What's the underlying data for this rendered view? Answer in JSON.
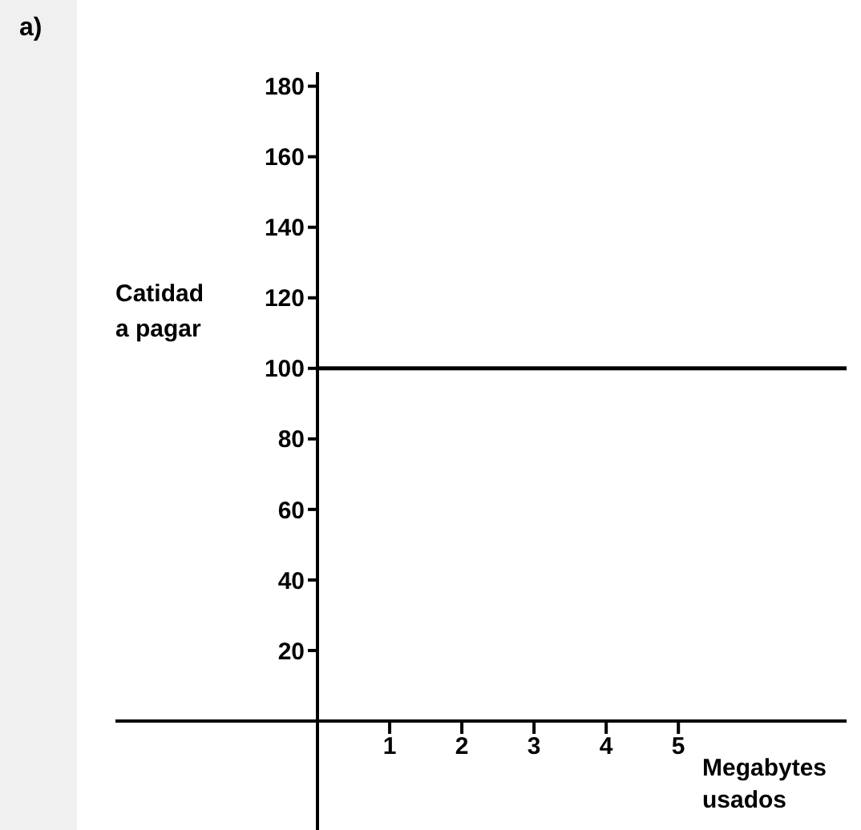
{
  "chart_data": {
    "type": "line",
    "annotations": [
      "a)"
    ],
    "xlabel": "Megabytes usados",
    "ylabel": "Catidad a pagar",
    "x": [
      0,
      7.33
    ],
    "series": [
      {
        "color": "#000000",
        "values": [
          100,
          100
        ]
      }
    ],
    "xlim": [
      0,
      7.33
    ],
    "xticks": [
      1,
      2,
      3,
      4,
      5
    ],
    "ylim": [
      0,
      184
    ],
    "yticks": [
      20,
      40,
      60,
      80,
      100,
      120,
      140,
      160,
      180
    ],
    "grid": false,
    "legend": false,
    "marker": "none",
    "line_style": "solid"
  }
}
